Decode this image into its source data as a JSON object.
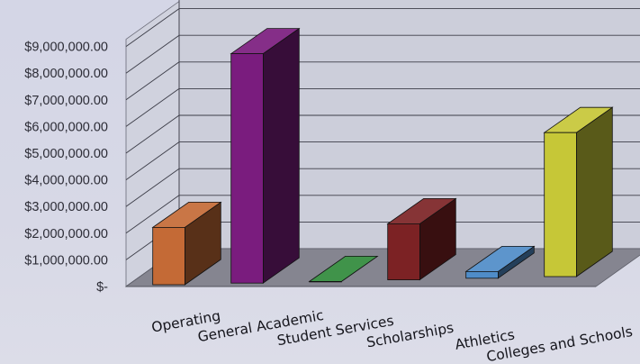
{
  "chart_data": {
    "type": "bar",
    "three_d": true,
    "grid": true,
    "legend": "none",
    "categories": [
      "Operating",
      "General Academic",
      "Student Services",
      "Scholarships",
      "Athletics",
      "Colleges  and Schools"
    ],
    "values": [
      2150000,
      8600000,
      0,
      2100000,
      250000,
      5400000
    ],
    "ylim": [
      0,
      9000000
    ],
    "yticks": [
      0,
      1000000,
      2000000,
      3000000,
      4000000,
      5000000,
      6000000,
      7000000,
      8000000,
      9000000
    ],
    "ytick_labels": [
      "$-",
      "$1,000,000.00",
      "$2,000,000.00",
      "$3,000,000.00",
      "$4,000,000.00",
      "$5,000,000.00",
      "$6,000,000.00",
      "$7,000,000.00",
      "$8,000,000.00",
      "$9,000,000.00"
    ],
    "bar_colors": [
      "#c46a36",
      "#7a1c7e",
      "#2f8a3a",
      "#7c2224",
      "#4f8cc8",
      "#c6c737"
    ],
    "title": "",
    "xlabel": "",
    "ylabel": ""
  }
}
